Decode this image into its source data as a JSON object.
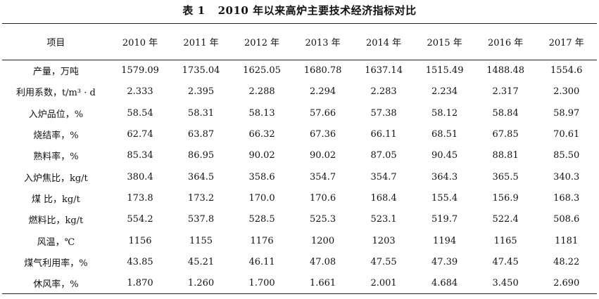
{
  "caption": {
    "number": "表 1",
    "title": "2010 年以来高炉主要技术经济指标对比"
  },
  "table": {
    "headers": [
      "项目",
      "2010 年",
      "2011 年",
      "2012 年",
      "2013 年",
      "2014 年",
      "2015 年",
      "2016 年",
      "2017 年"
    ],
    "rows": [
      [
        "产量，万吨",
        "1579.09",
        "1735.04",
        "1625.05",
        "1680.78",
        "1637.14",
        "1515.49",
        "1488.48",
        "1554.6"
      ],
      [
        "利用系数，t/m³ · d",
        "2.333",
        "2.395",
        "2.288",
        "2.294",
        "2.283",
        "2.234",
        "2.317",
        "2.300"
      ],
      [
        "入炉品位，%",
        "58.54",
        "58.31",
        "58.13",
        "57.66",
        "57.38",
        "58.12",
        "58.84",
        "58.97"
      ],
      [
        "烧结率，%",
        "62.74",
        "63.87",
        "66.32",
        "67.36",
        "66.11",
        "68.51",
        "67.85",
        "70.61"
      ],
      [
        "熟料率，%",
        "85.34",
        "86.95",
        "90.02",
        "90.02",
        "87.05",
        "90.45",
        "88.81",
        "85.50"
      ],
      [
        "入炉焦比，kg/t",
        "380.4",
        "364.5",
        "358.6",
        "354.7",
        "354.7",
        "364.3",
        "365.5",
        "340.3"
      ],
      [
        "煤  比，kg/t",
        "173.8",
        "173.2",
        "170.0",
        "170.6",
        "168.4",
        "155.4",
        "156.9",
        "168.3"
      ],
      [
        "燃料比，kg/t",
        "554.2",
        "537.8",
        "528.5",
        "525.3",
        "523.1",
        "519.7",
        "522.4",
        "508.6"
      ],
      [
        "风温，℃",
        "1156",
        "1155",
        "1176",
        "1200",
        "1203",
        "1194",
        "1165",
        "1181"
      ],
      [
        "煤气利用率，%",
        "43.85",
        "45.21",
        "46.11",
        "47.08",
        "47.55",
        "47.39",
        "47.45",
        "48.22"
      ],
      [
        "休风率，%",
        "1.870",
        "1.260",
        "1.700",
        "1.661",
        "2.001",
        "4.684",
        "3.450",
        "2.690"
      ]
    ]
  }
}
